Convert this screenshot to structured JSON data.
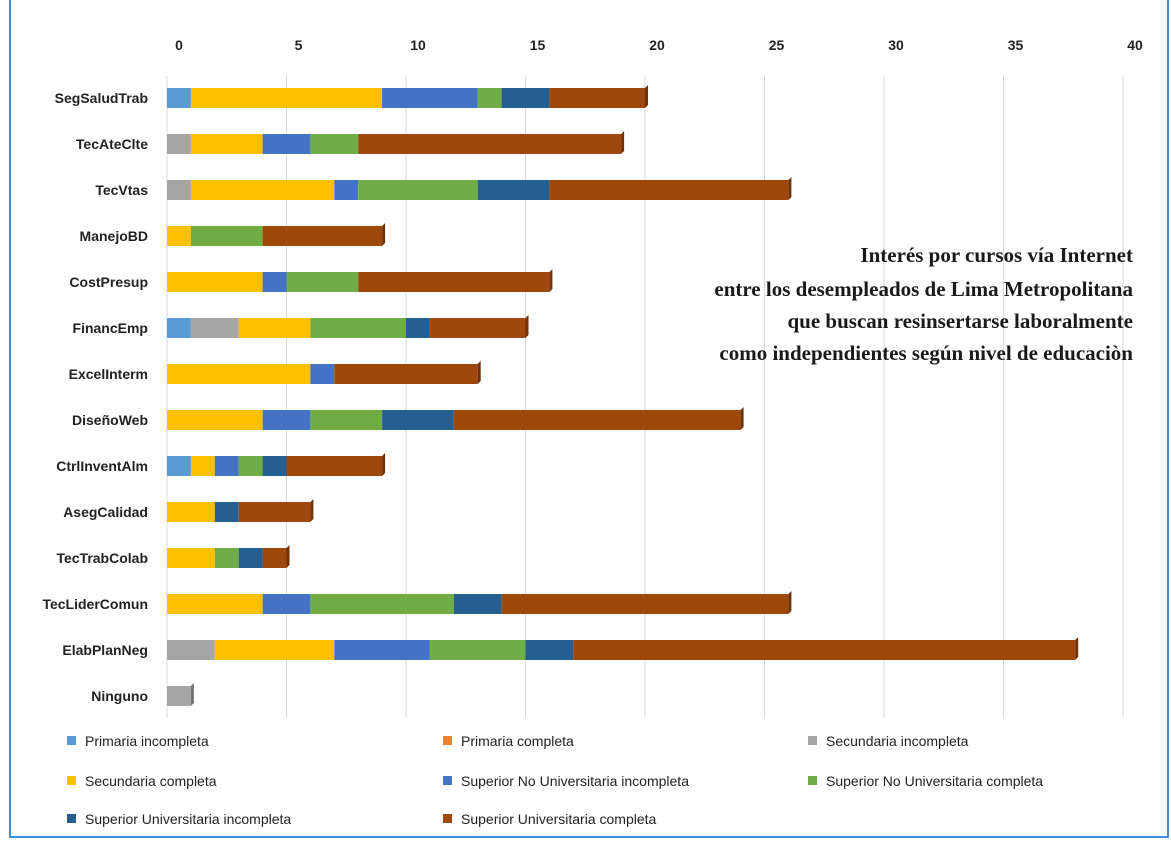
{
  "chart_data": {
    "type": "bar",
    "orientation": "horizontal",
    "stacked": true,
    "title_lines": [
      "Interés por cursos vía Internet",
      "entre los desempleados de Lima Metropolitana",
      "que buscan resinsertarse laboralmente",
      "como independientes según nivel de educaciòn"
    ],
    "xlim": [
      0,
      40
    ],
    "x_ticks": [
      0,
      5,
      10,
      15,
      20,
      25,
      30,
      35,
      40
    ],
    "grid": "vertical",
    "legend_position": "bottom",
    "categories": [
      "SegSaludTrab",
      "TecAteClte",
      "TecVtas",
      "ManejoBD",
      "CostPresup",
      "FinancEmp",
      "ExcelInterm",
      "DiseñoWeb",
      "CtrlInventAlm",
      "AsegCalidad",
      "TecTrabColab",
      "TecLiderComun",
      "ElabPlanNeg",
      "Ninguno"
    ],
    "series": [
      {
        "name": "Primaria incompleta",
        "color": "#5b9bd5",
        "values": [
          1,
          0,
          0,
          0,
          0,
          1,
          0,
          0,
          1,
          0,
          0,
          0,
          0,
          0
        ]
      },
      {
        "name": "Primaria completa",
        "color": "#ed7d31",
        "values": [
          0,
          0,
          0,
          0,
          0,
          0,
          0,
          0,
          0,
          0,
          0,
          0,
          0,
          0
        ]
      },
      {
        "name": "Secundaria incompleta",
        "color": "#a5a5a5",
        "values": [
          0,
          1,
          1,
          0,
          0,
          2,
          0,
          0,
          0,
          0,
          0,
          0,
          2,
          1
        ]
      },
      {
        "name": "Secundaria completa",
        "color": "#ffc000",
        "values": [
          8,
          3,
          6,
          1,
          4,
          3,
          6,
          4,
          1,
          2,
          2,
          4,
          5,
          0
        ]
      },
      {
        "name": "Superior No Universitaria incompleta",
        "color": "#4472c4",
        "values": [
          4,
          2,
          1,
          0,
          1,
          0,
          1,
          2,
          1,
          0,
          0,
          2,
          4,
          0
        ]
      },
      {
        "name": "Superior No Universitaria completa",
        "color": "#70ad47",
        "values": [
          1,
          2,
          5,
          3,
          3,
          4,
          0,
          3,
          1,
          0,
          1,
          6,
          4,
          0
        ]
      },
      {
        "name": "Superior Universitaria incompleta",
        "color": "#255e91",
        "values": [
          2,
          0,
          3,
          0,
          0,
          1,
          0,
          3,
          1,
          1,
          1,
          2,
          2,
          0
        ]
      },
      {
        "name": "Superior Universitaria completa",
        "color": "#9e480e",
        "values": [
          4,
          11,
          10,
          5,
          8,
          4,
          6,
          12,
          4,
          3,
          1,
          12,
          21,
          0
        ]
      }
    ]
  }
}
